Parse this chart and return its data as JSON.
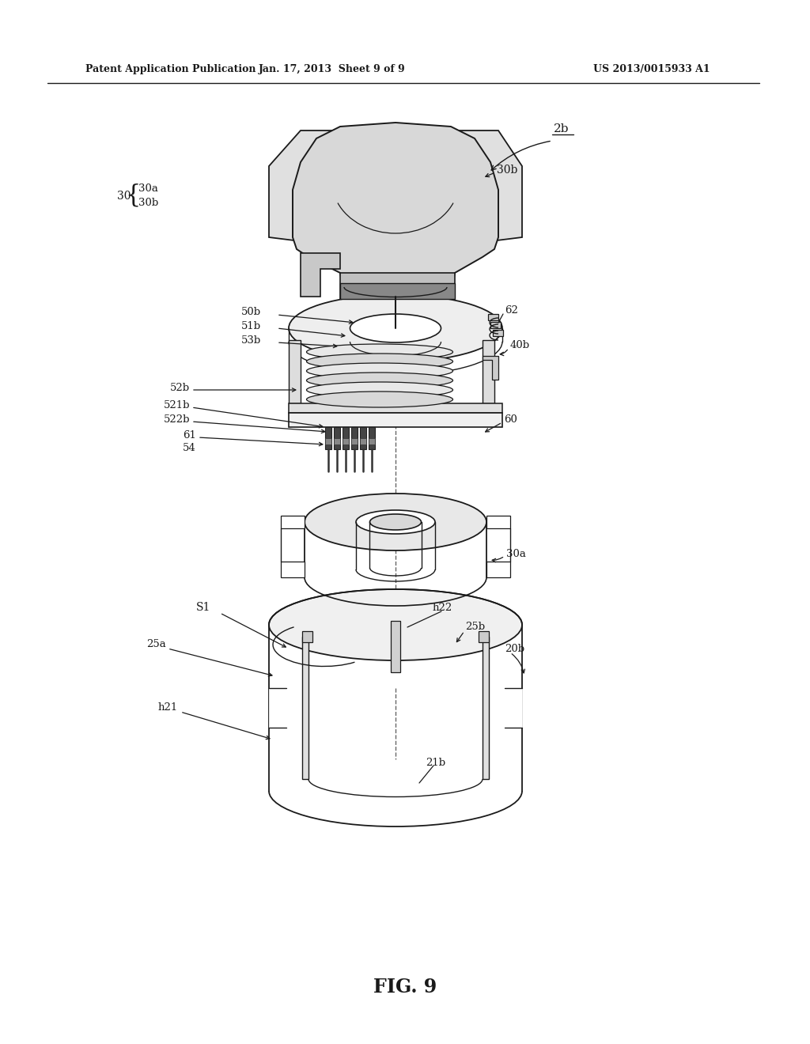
{
  "bg_color": "#ffffff",
  "lc": "#1a1a1a",
  "header_left": "Patent Application Publication",
  "header_center": "Jan. 17, 2013  Sheet 9 of 9",
  "header_right": "US 2013/0015933 A1",
  "figure_label": "FIG. 9"
}
